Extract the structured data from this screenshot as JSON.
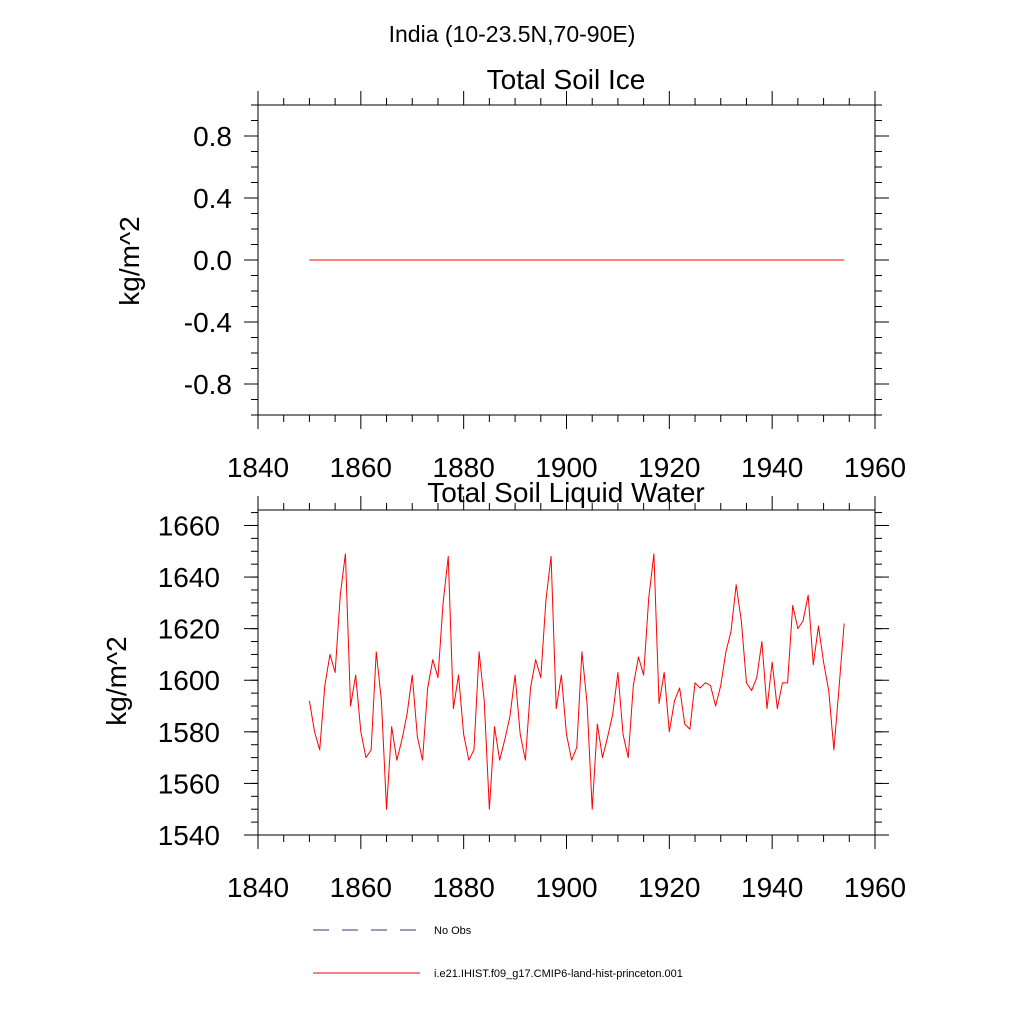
{
  "figure": {
    "region_title": "India (10-23.5N,70-90E)"
  },
  "legend": {
    "items": [
      {
        "label": "No Obs",
        "color": "#3a3a7a",
        "dashed": true
      },
      {
        "label": "i.e21.IHIST.f09_g17.CMIP6-land-hist-princeton.001",
        "color": "#ff0000",
        "dashed": false
      }
    ]
  },
  "chart_data": [
    {
      "type": "line",
      "title": "Total Soil Ice",
      "xlabel": "",
      "ylabel": "kg/m^2",
      "xlim": [
        1840,
        1960
      ],
      "ylim": [
        -1.0,
        1.0
      ],
      "xticks": [
        1840,
        1860,
        1880,
        1900,
        1920,
        1940,
        1960
      ],
      "xtick_labels": [
        "1840",
        "1860",
        "1880",
        "1900",
        "1920",
        "1940",
        "1960"
      ],
      "yticks": [
        0.8,
        0.4,
        0.0,
        -0.4,
        -0.8
      ],
      "ytick_labels": [
        "0.8",
        "0.4",
        "0.0",
        "-0.4",
        "-0.8"
      ],
      "grid": false,
      "series": [
        {
          "color": "#ff0000",
          "x": [
            1850,
            1954
          ],
          "y": [
            0.0,
            0.0
          ]
        }
      ]
    },
    {
      "type": "line",
      "title": "Total Soil Liquid Water",
      "xlabel": "",
      "ylabel": "kg/m^2",
      "xlim": [
        1840,
        1960
      ],
      "ylim": [
        1540,
        1666
      ],
      "xticks": [
        1840,
        1860,
        1880,
        1900,
        1920,
        1940,
        1960
      ],
      "xtick_labels": [
        "1840",
        "1860",
        "1880",
        "1900",
        "1920",
        "1940",
        "1960"
      ],
      "yticks": [
        1660,
        1640,
        1620,
        1600,
        1580,
        1560,
        1540
      ],
      "ytick_labels": [
        "1660",
        "1640",
        "1620",
        "1600",
        "1580",
        "1560",
        "1540"
      ],
      "grid": false,
      "series": [
        {
          "color": "#ff0000",
          "x": [
            1850,
            1851,
            1852,
            1853,
            1854,
            1855,
            1856,
            1857,
            1858,
            1859,
            1860,
            1861,
            1862,
            1863,
            1864,
            1865,
            1866,
            1867,
            1868,
            1869,
            1870,
            1871,
            1872,
            1873,
            1874,
            1875,
            1876,
            1877,
            1878,
            1879,
            1880,
            1881,
            1882,
            1883,
            1884,
            1885,
            1886,
            1887,
            1888,
            1889,
            1890,
            1891,
            1892,
            1893,
            1894,
            1895,
            1896,
            1897,
            1898,
            1899,
            1900,
            1901,
            1902,
            1903,
            1904,
            1905,
            1906,
            1907,
            1908,
            1909,
            1910,
            1911,
            1912,
            1913,
            1914,
            1915,
            1916,
            1917,
            1918,
            1919,
            1920,
            1921,
            1922,
            1923,
            1924,
            1925,
            1926,
            1927,
            1928,
            1929,
            1930,
            1931,
            1932,
            1933,
            1934,
            1935,
            1936,
            1937,
            1938,
            1939,
            1940,
            1941,
            1942,
            1943,
            1944,
            1945,
            1946,
            1947,
            1948,
            1949,
            1950,
            1951,
            1952,
            1953,
            1954
          ],
          "y": [
            1592,
            1580,
            1573,
            1598,
            1610,
            1603,
            1633,
            1649,
            1590,
            1602,
            1580,
            1570,
            1573,
            1611,
            1592,
            1550,
            1582,
            1569,
            1577,
            1587,
            1602,
            1578,
            1569,
            1597,
            1608,
            1601,
            1630,
            1648,
            1589,
            1602,
            1579,
            1569,
            1573,
            1611,
            1592,
            1550,
            1582,
            1569,
            1577,
            1586,
            1602,
            1579,
            1569,
            1597,
            1608,
            1601,
            1631,
            1648,
            1589,
            1602,
            1579,
            1569,
            1574,
            1611,
            1591,
            1550,
            1583,
            1570,
            1578,
            1587,
            1603,
            1579,
            1570,
            1598,
            1609,
            1602,
            1632,
            1649,
            1591,
            1603,
            1580,
            1592,
            1597,
            1583,
            1581,
            1599,
            1597,
            1599,
            1598,
            1590,
            1598,
            1611,
            1619,
            1637,
            1623,
            1599,
            1596,
            1601,
            1615,
            1589,
            1607,
            1589,
            1599,
            1599,
            1629,
            1620,
            1623,
            1633,
            1606,
            1621,
            1607,
            1596,
            1573,
            1597,
            1622
          ]
        }
      ]
    }
  ]
}
